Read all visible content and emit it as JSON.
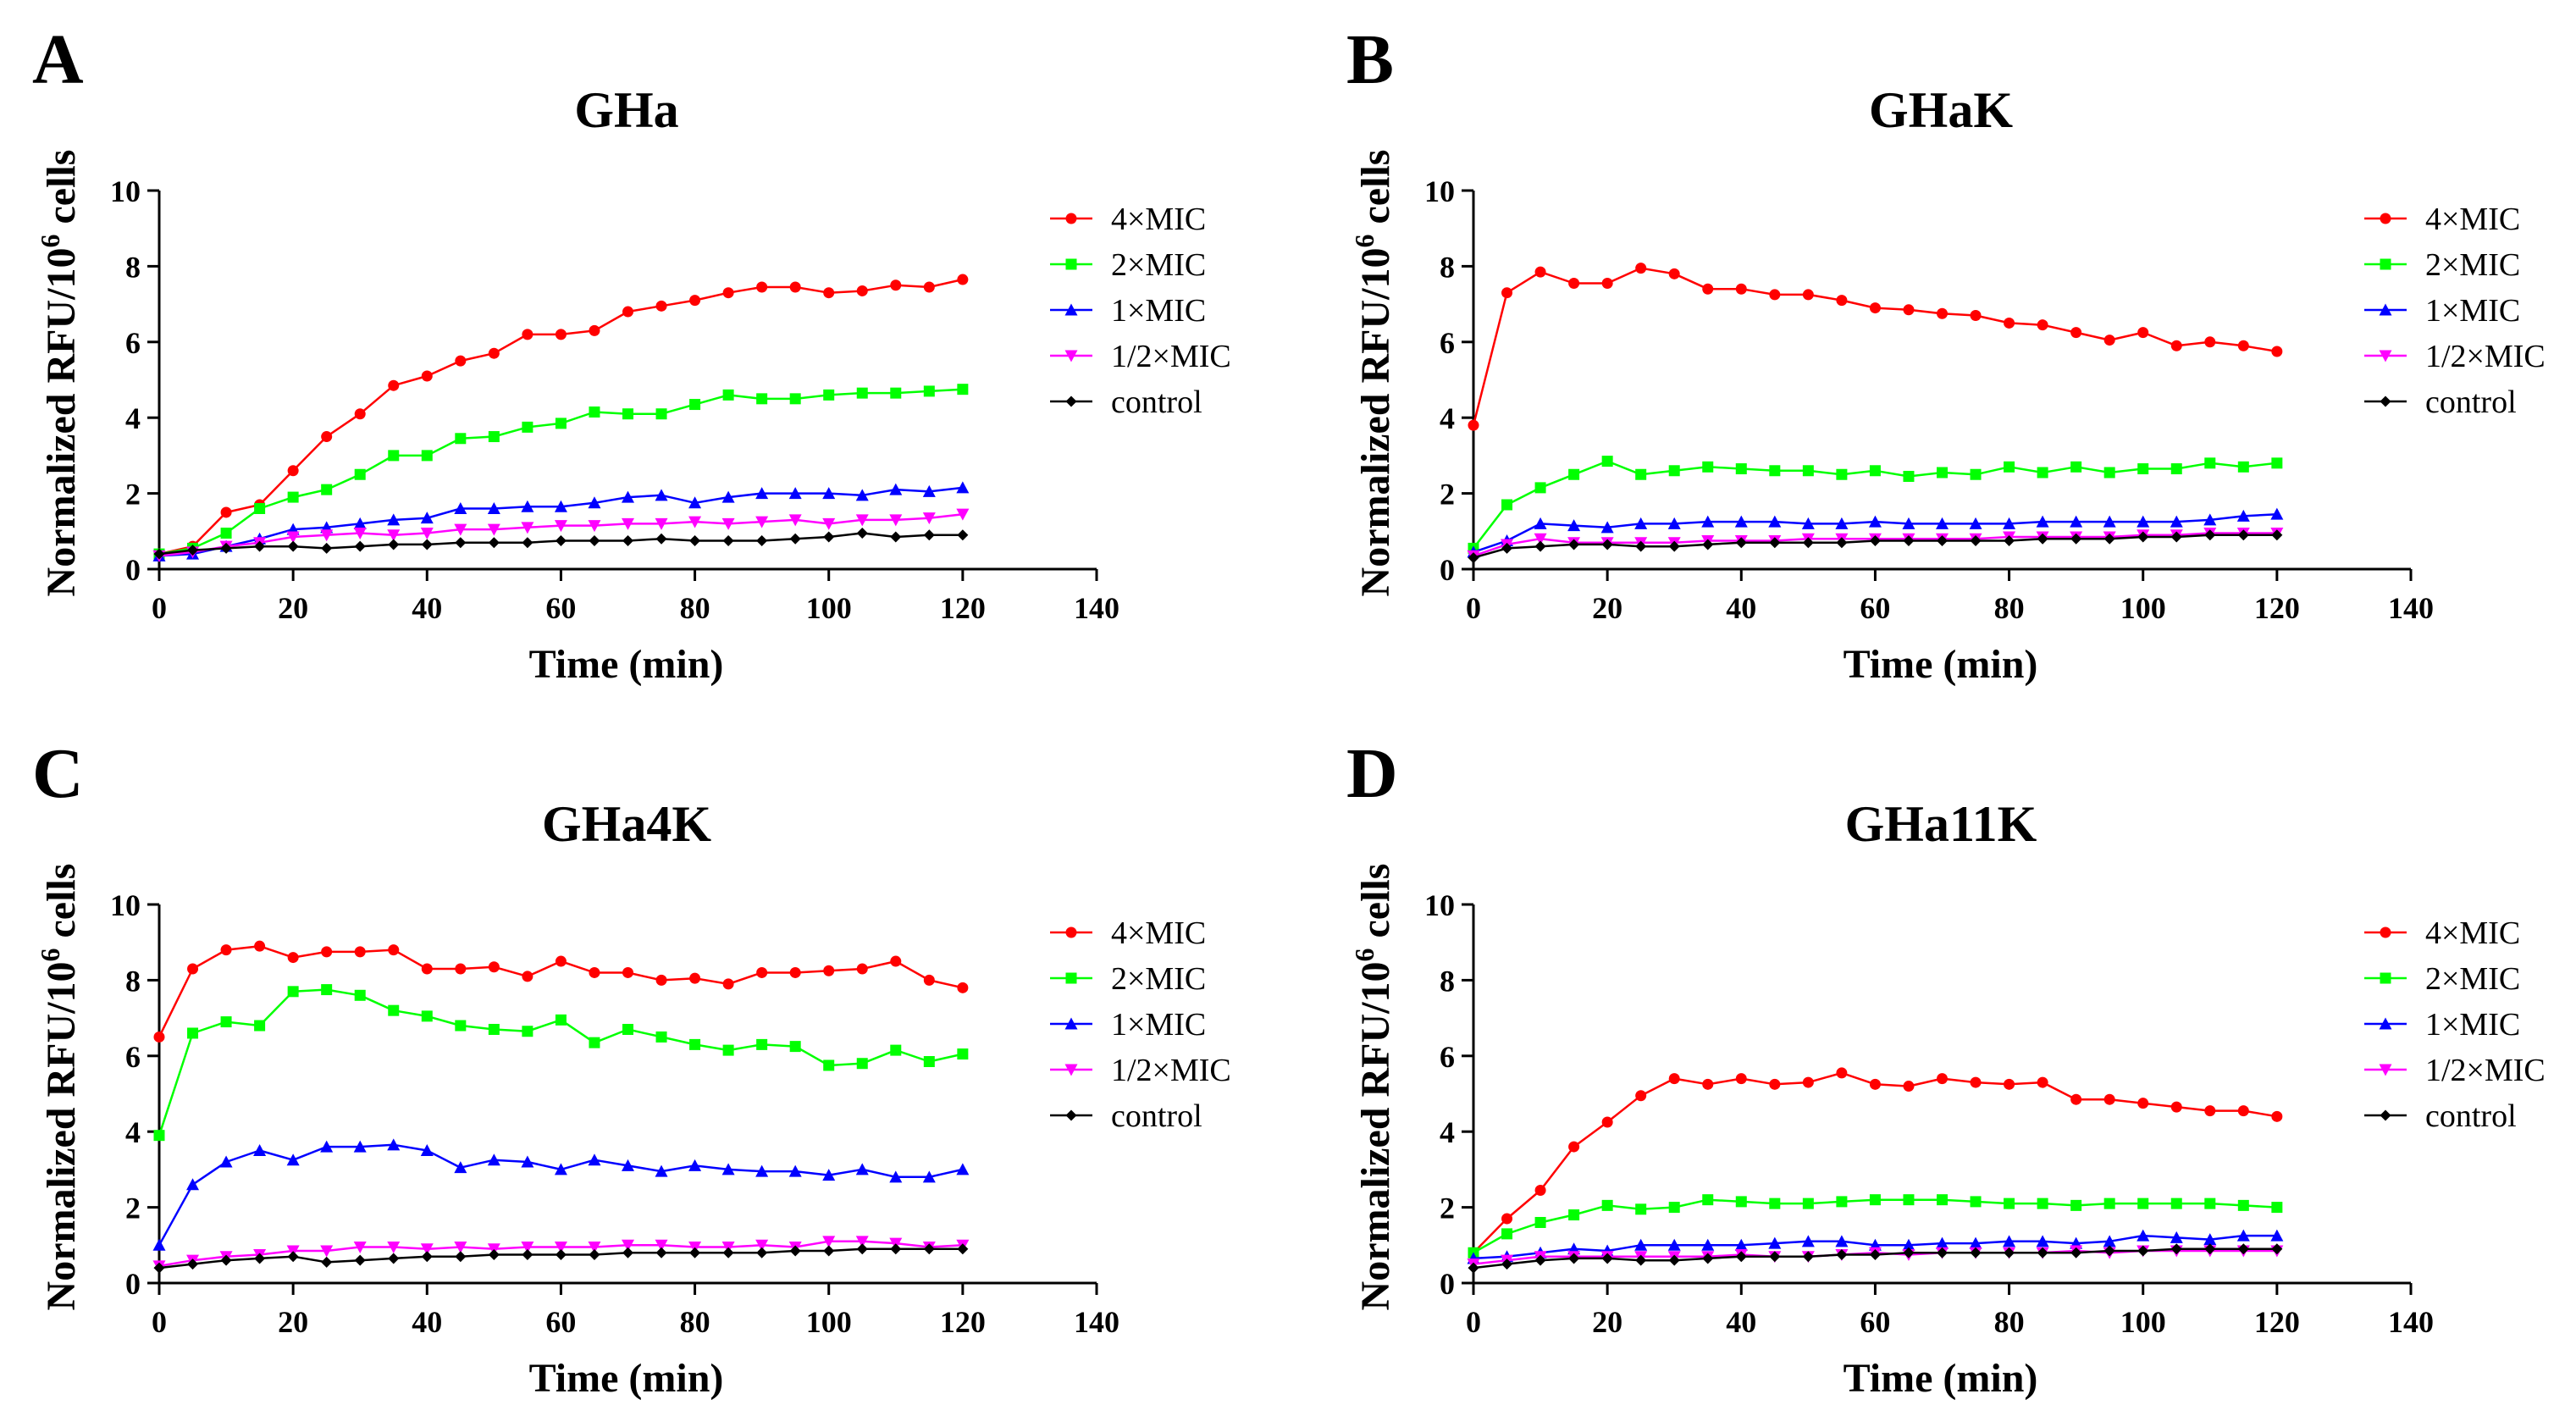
{
  "chart_data": [
    {
      "panel": "A",
      "type": "line",
      "title": "GHa",
      "xlabel": "Time (min)",
      "ylabel": "Normalized RFU/10^6 cells",
      "ylabel_main": "Normalized RFU/10",
      "ylabel_sup": "6",
      "ylabel_tail": " cells",
      "xlim": [
        0,
        140
      ],
      "ylim": [
        0,
        10
      ],
      "xticks": [
        0,
        20,
        40,
        60,
        80,
        100,
        120,
        140
      ],
      "yticks": [
        0,
        2,
        4,
        6,
        8,
        10
      ],
      "legend_position": "top-right",
      "x": [
        0,
        5,
        10,
        15,
        20,
        25,
        30,
        35,
        40,
        45,
        50,
        55,
        60,
        65,
        70,
        75,
        80,
        85,
        90,
        95,
        100,
        105,
        110,
        115,
        120
      ],
      "series": [
        {
          "name": "4×MIC",
          "color": "#ff0000",
          "marker": "circle",
          "values": [
            0.4,
            0.6,
            1.5,
            1.7,
            2.6,
            3.5,
            4.1,
            4.85,
            5.1,
            5.5,
            5.7,
            6.2,
            6.2,
            6.3,
            6.8,
            6.95,
            7.1,
            7.3,
            7.45,
            7.45,
            7.3,
            7.35,
            7.5,
            7.45,
            7.65
          ]
        },
        {
          "name": "2×MIC",
          "color": "#00ff00",
          "marker": "square",
          "values": [
            0.4,
            0.55,
            0.95,
            1.6,
            1.9,
            2.1,
            2.5,
            3.0,
            3.0,
            3.45,
            3.5,
            3.75,
            3.85,
            4.15,
            4.1,
            4.1,
            4.35,
            4.6,
            4.5,
            4.5,
            4.6,
            4.65,
            4.65,
            4.7,
            4.75
          ]
        },
        {
          "name": "1×MIC",
          "color": "#0000ff",
          "marker": "triangle",
          "values": [
            0.35,
            0.4,
            0.6,
            0.8,
            1.05,
            1.1,
            1.2,
            1.3,
            1.35,
            1.6,
            1.6,
            1.65,
            1.65,
            1.75,
            1.9,
            1.95,
            1.75,
            1.9,
            2.0,
            2.0,
            2.0,
            1.95,
            2.1,
            2.05,
            2.15
          ]
        },
        {
          "name": "1/2×MIC",
          "color": "#ff00ff",
          "marker": "triangle-down",
          "values": [
            0.35,
            0.45,
            0.6,
            0.7,
            0.85,
            0.9,
            0.95,
            0.9,
            0.95,
            1.05,
            1.05,
            1.1,
            1.15,
            1.15,
            1.2,
            1.2,
            1.25,
            1.2,
            1.25,
            1.3,
            1.2,
            1.3,
            1.3,
            1.35,
            1.45
          ]
        },
        {
          "name": "control",
          "color": "#000000",
          "marker": "diamond",
          "values": [
            0.4,
            0.5,
            0.55,
            0.6,
            0.6,
            0.55,
            0.6,
            0.65,
            0.65,
            0.7,
            0.7,
            0.7,
            0.75,
            0.75,
            0.75,
            0.8,
            0.75,
            0.75,
            0.75,
            0.8,
            0.85,
            0.95,
            0.85,
            0.9,
            0.9
          ]
        }
      ]
    },
    {
      "panel": "B",
      "type": "line",
      "title": "GHaK",
      "xlabel": "Time (min)",
      "ylabel": "Normalized RFU/10^6 cells",
      "ylabel_main": "Normalized RFU/10",
      "ylabel_sup": "6",
      "ylabel_tail": " cells",
      "xlim": [
        0,
        140
      ],
      "ylim": [
        0,
        10
      ],
      "xticks": [
        0,
        20,
        40,
        60,
        80,
        100,
        120,
        140
      ],
      "yticks": [
        0,
        2,
        4,
        6,
        8,
        10
      ],
      "legend_position": "top-right",
      "x": [
        0,
        5,
        10,
        15,
        20,
        25,
        30,
        35,
        40,
        45,
        50,
        55,
        60,
        65,
        70,
        75,
        80,
        85,
        90,
        95,
        100,
        105,
        110,
        115,
        120
      ],
      "series": [
        {
          "name": "4×MIC",
          "color": "#ff0000",
          "marker": "circle",
          "values": [
            3.8,
            7.3,
            7.85,
            7.55,
            7.55,
            7.95,
            7.8,
            7.4,
            7.4,
            7.25,
            7.25,
            7.1,
            6.9,
            6.85,
            6.75,
            6.7,
            6.5,
            6.45,
            6.25,
            6.05,
            6.25,
            5.9,
            6.0,
            5.9,
            5.75
          ]
        },
        {
          "name": "2×MIC",
          "color": "#00ff00",
          "marker": "square",
          "values": [
            0.55,
            1.7,
            2.15,
            2.5,
            2.85,
            2.5,
            2.6,
            2.7,
            2.65,
            2.6,
            2.6,
            2.5,
            2.6,
            2.45,
            2.55,
            2.5,
            2.7,
            2.55,
            2.7,
            2.55,
            2.65,
            2.65,
            2.8,
            2.7,
            2.8
          ]
        },
        {
          "name": "1×MIC",
          "color": "#0000ff",
          "marker": "triangle",
          "values": [
            0.45,
            0.75,
            1.2,
            1.15,
            1.1,
            1.2,
            1.2,
            1.25,
            1.25,
            1.25,
            1.2,
            1.2,
            1.25,
            1.2,
            1.2,
            1.2,
            1.2,
            1.25,
            1.25,
            1.25,
            1.25,
            1.25,
            1.3,
            1.4,
            1.45
          ]
        },
        {
          "name": "1/2×MIC",
          "color": "#ff00ff",
          "marker": "triangle-down",
          "values": [
            0.35,
            0.65,
            0.8,
            0.7,
            0.7,
            0.7,
            0.7,
            0.75,
            0.75,
            0.75,
            0.8,
            0.8,
            0.8,
            0.8,
            0.8,
            0.8,
            0.85,
            0.85,
            0.85,
            0.85,
            0.9,
            0.9,
            0.95,
            0.95,
            0.95
          ]
        },
        {
          "name": "control",
          "color": "#000000",
          "marker": "diamond",
          "values": [
            0.3,
            0.55,
            0.6,
            0.65,
            0.65,
            0.6,
            0.6,
            0.65,
            0.7,
            0.7,
            0.7,
            0.7,
            0.75,
            0.75,
            0.75,
            0.75,
            0.75,
            0.8,
            0.8,
            0.8,
            0.85,
            0.85,
            0.9,
            0.9,
            0.9
          ]
        }
      ]
    },
    {
      "panel": "C",
      "type": "line",
      "title": "GHa4K",
      "xlabel": "Time (min)",
      "ylabel": "Normalized RFU/10^6 cells",
      "ylabel_main": "Normalized RFU/10",
      "ylabel_sup": "6",
      "ylabel_tail": " cells",
      "xlim": [
        0,
        140
      ],
      "ylim": [
        0,
        10
      ],
      "xticks": [
        0,
        20,
        40,
        60,
        80,
        100,
        120,
        140
      ],
      "yticks": [
        0,
        2,
        4,
        6,
        8,
        10
      ],
      "legend_position": "top-right",
      "x": [
        0,
        5,
        10,
        15,
        20,
        25,
        30,
        35,
        40,
        45,
        50,
        55,
        60,
        65,
        70,
        75,
        80,
        85,
        90,
        95,
        100,
        105,
        110,
        115,
        120
      ],
      "series": [
        {
          "name": "4×MIC",
          "color": "#ff0000",
          "marker": "circle",
          "values": [
            6.5,
            8.3,
            8.8,
            8.9,
            8.6,
            8.75,
            8.75,
            8.8,
            8.3,
            8.3,
            8.35,
            8.1,
            8.5,
            8.2,
            8.2,
            8.0,
            8.05,
            7.9,
            8.2,
            8.2,
            8.25,
            8.3,
            8.5,
            8.0,
            7.8
          ]
        },
        {
          "name": "2×MIC",
          "color": "#00ff00",
          "marker": "square",
          "values": [
            3.9,
            6.6,
            6.9,
            6.8,
            7.7,
            7.75,
            7.6,
            7.2,
            7.05,
            6.8,
            6.7,
            6.65,
            6.95,
            6.35,
            6.7,
            6.5,
            6.3,
            6.15,
            6.3,
            6.25,
            5.75,
            5.8,
            6.15,
            5.85,
            6.05
          ]
        },
        {
          "name": "1×MIC",
          "color": "#0000ff",
          "marker": "triangle",
          "values": [
            1.0,
            2.6,
            3.2,
            3.5,
            3.25,
            3.6,
            3.6,
            3.65,
            3.5,
            3.05,
            3.25,
            3.2,
            3.0,
            3.25,
            3.1,
            2.95,
            3.1,
            3.0,
            2.95,
            2.95,
            2.85,
            3.0,
            2.8,
            2.8,
            3.0
          ]
        },
        {
          "name": "1/2×MIC",
          "color": "#ff00ff",
          "marker": "triangle-down",
          "values": [
            0.45,
            0.6,
            0.7,
            0.75,
            0.85,
            0.85,
            0.95,
            0.95,
            0.9,
            0.95,
            0.9,
            0.95,
            0.95,
            0.95,
            1.0,
            1.0,
            0.95,
            0.95,
            1.0,
            0.95,
            1.1,
            1.1,
            1.05,
            0.95,
            1.0
          ]
        },
        {
          "name": "control",
          "color": "#000000",
          "marker": "diamond",
          "values": [
            0.4,
            0.5,
            0.6,
            0.65,
            0.7,
            0.55,
            0.6,
            0.65,
            0.7,
            0.7,
            0.75,
            0.75,
            0.75,
            0.75,
            0.8,
            0.8,
            0.8,
            0.8,
            0.8,
            0.85,
            0.85,
            0.9,
            0.9,
            0.9,
            0.9
          ]
        }
      ]
    },
    {
      "panel": "D",
      "type": "line",
      "title": "GHa11K",
      "xlabel": "Time (min)",
      "ylabel": "Normalized RFU/10^6 cells",
      "ylabel_main": "Normalized RFU/10",
      "ylabel_sup": "6",
      "ylabel_tail": " cells",
      "xlim": [
        0,
        140
      ],
      "ylim": [
        0,
        10
      ],
      "xticks": [
        0,
        20,
        40,
        60,
        80,
        100,
        120,
        140
      ],
      "yticks": [
        0,
        2,
        4,
        6,
        8,
        10
      ],
      "legend_position": "top-right",
      "x": [
        0,
        5,
        10,
        15,
        20,
        25,
        30,
        35,
        40,
        45,
        50,
        55,
        60,
        65,
        70,
        75,
        80,
        85,
        90,
        95,
        100,
        105,
        110,
        115,
        120
      ],
      "series": [
        {
          "name": "4×MIC",
          "color": "#ff0000",
          "marker": "circle",
          "values": [
            0.8,
            1.7,
            2.45,
            3.6,
            4.25,
            4.95,
            5.4,
            5.25,
            5.4,
            5.25,
            5.3,
            5.55,
            5.25,
            5.2,
            5.4,
            5.3,
            5.25,
            5.3,
            4.85,
            4.85,
            4.75,
            4.65,
            4.55,
            4.55,
            4.4
          ]
        },
        {
          "name": "2×MIC",
          "color": "#00ff00",
          "marker": "square",
          "values": [
            0.8,
            1.3,
            1.6,
            1.8,
            2.05,
            1.95,
            2.0,
            2.2,
            2.15,
            2.1,
            2.1,
            2.15,
            2.2,
            2.2,
            2.2,
            2.15,
            2.1,
            2.1,
            2.05,
            2.1,
            2.1,
            2.1,
            2.1,
            2.05,
            2.0
          ]
        },
        {
          "name": "1×MIC",
          "color": "#0000ff",
          "marker": "triangle",
          "values": [
            0.65,
            0.7,
            0.8,
            0.9,
            0.85,
            1.0,
            1.0,
            1.0,
            1.0,
            1.05,
            1.1,
            1.1,
            1.0,
            1.0,
            1.05,
            1.05,
            1.1,
            1.1,
            1.05,
            1.1,
            1.25,
            1.2,
            1.15,
            1.25,
            1.25
          ]
        },
        {
          "name": "1/2×MIC",
          "color": "#ff00ff",
          "marker": "triangle-down",
          "values": [
            0.5,
            0.6,
            0.7,
            0.7,
            0.7,
            0.7,
            0.7,
            0.7,
            0.75,
            0.7,
            0.7,
            0.75,
            0.8,
            0.75,
            0.8,
            0.8,
            0.8,
            0.8,
            0.85,
            0.8,
            0.85,
            0.85,
            0.85,
            0.85,
            0.85
          ]
        },
        {
          "name": "control",
          "color": "#000000",
          "marker": "diamond",
          "values": [
            0.4,
            0.5,
            0.6,
            0.65,
            0.65,
            0.6,
            0.6,
            0.65,
            0.7,
            0.7,
            0.7,
            0.75,
            0.75,
            0.8,
            0.8,
            0.8,
            0.8,
            0.8,
            0.8,
            0.85,
            0.85,
            0.9,
            0.9,
            0.9,
            0.9
          ]
        }
      ]
    }
  ]
}
